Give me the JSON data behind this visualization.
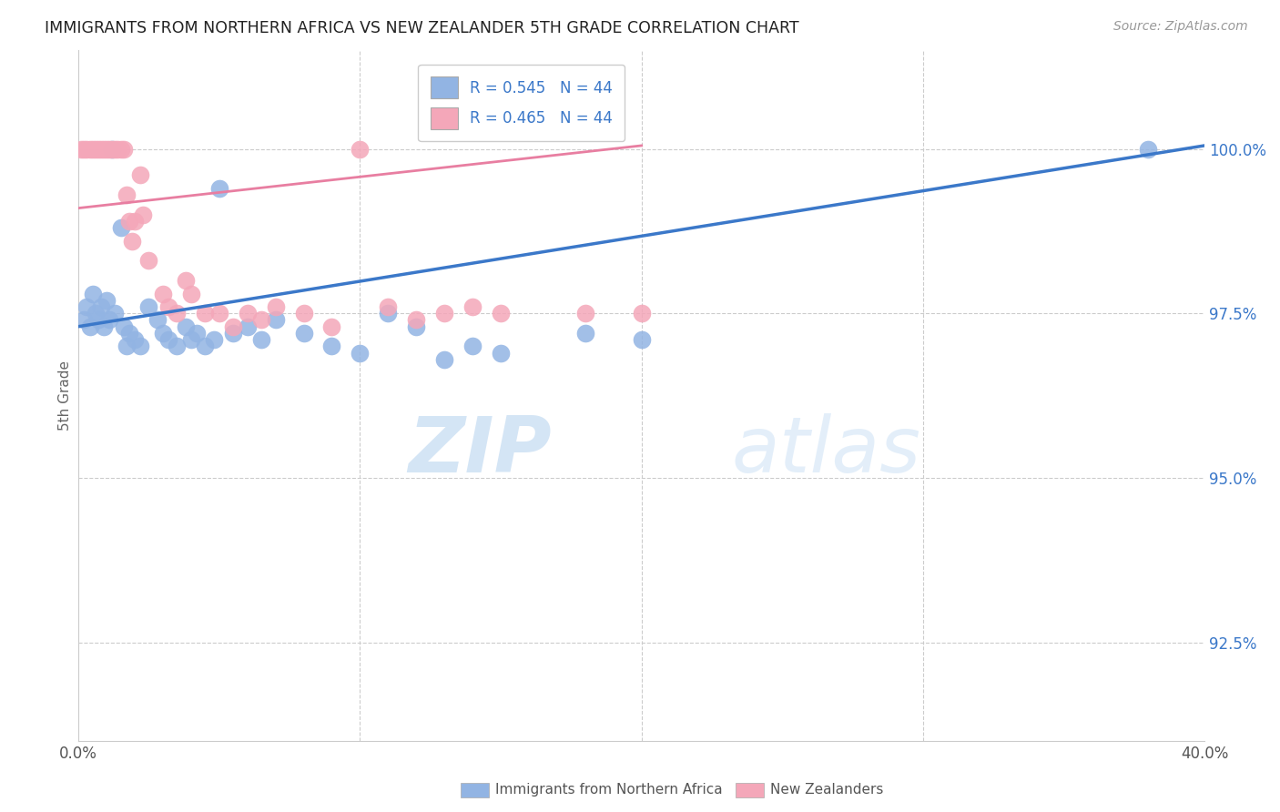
{
  "title": "IMMIGRANTS FROM NORTHERN AFRICA VS NEW ZEALANDER 5TH GRADE CORRELATION CHART",
  "source": "Source: ZipAtlas.com",
  "ylabel": "5th Grade",
  "y_ticks": [
    92.5,
    95.0,
    97.5,
    100.0
  ],
  "y_tick_labels": [
    "92.5%",
    "95.0%",
    "97.5%",
    "100.0%"
  ],
  "xlim": [
    0.0,
    40.0
  ],
  "ylim": [
    91.0,
    101.5
  ],
  "legend_r_blue": "R = 0.545",
  "legend_n_blue": "N = 44",
  "legend_r_pink": "R = 0.465",
  "legend_n_pink": "N = 44",
  "legend_label_blue": "Immigrants from Northern Africa",
  "legend_label_pink": "New Zealanders",
  "blue_color": "#92b4e3",
  "pink_color": "#f4a7b9",
  "trend_blue_color": "#3b78c9",
  "trend_pink_color": "#e87ea1",
  "watermark_zip": "ZIP",
  "watermark_atlas": "atlas",
  "blue_points": [
    [
      0.2,
      97.4
    ],
    [
      0.3,
      97.6
    ],
    [
      0.4,
      97.3
    ],
    [
      0.5,
      97.8
    ],
    [
      0.6,
      97.5
    ],
    [
      0.7,
      97.4
    ],
    [
      0.8,
      97.6
    ],
    [
      0.9,
      97.3
    ],
    [
      1.0,
      97.7
    ],
    [
      1.1,
      97.4
    ],
    [
      1.2,
      100.0
    ],
    [
      1.3,
      97.5
    ],
    [
      1.5,
      98.8
    ],
    [
      1.6,
      97.3
    ],
    [
      1.7,
      97.0
    ],
    [
      1.8,
      97.2
    ],
    [
      2.0,
      97.1
    ],
    [
      2.2,
      97.0
    ],
    [
      2.5,
      97.6
    ],
    [
      2.8,
      97.4
    ],
    [
      3.0,
      97.2
    ],
    [
      3.2,
      97.1
    ],
    [
      3.5,
      97.0
    ],
    [
      3.8,
      97.3
    ],
    [
      4.0,
      97.1
    ],
    [
      4.2,
      97.2
    ],
    [
      4.5,
      97.0
    ],
    [
      4.8,
      97.1
    ],
    [
      5.0,
      99.4
    ],
    [
      5.5,
      97.2
    ],
    [
      6.0,
      97.3
    ],
    [
      6.5,
      97.1
    ],
    [
      7.0,
      97.4
    ],
    [
      8.0,
      97.2
    ],
    [
      9.0,
      97.0
    ],
    [
      10.0,
      96.9
    ],
    [
      11.0,
      97.5
    ],
    [
      12.0,
      97.3
    ],
    [
      13.0,
      96.8
    ],
    [
      14.0,
      97.0
    ],
    [
      15.0,
      96.9
    ],
    [
      18.0,
      97.2
    ],
    [
      20.0,
      97.1
    ],
    [
      38.0,
      100.0
    ]
  ],
  "pink_points": [
    [
      0.1,
      100.0
    ],
    [
      0.2,
      100.0
    ],
    [
      0.3,
      100.0
    ],
    [
      0.4,
      100.0
    ],
    [
      0.5,
      100.0
    ],
    [
      0.6,
      100.0
    ],
    [
      0.7,
      100.0
    ],
    [
      0.8,
      100.0
    ],
    [
      0.9,
      100.0
    ],
    [
      1.0,
      100.0
    ],
    [
      1.1,
      100.0
    ],
    [
      1.2,
      100.0
    ],
    [
      1.3,
      100.0
    ],
    [
      1.4,
      100.0
    ],
    [
      1.5,
      100.0
    ],
    [
      1.6,
      100.0
    ],
    [
      1.7,
      99.3
    ],
    [
      1.8,
      98.9
    ],
    [
      1.9,
      98.6
    ],
    [
      2.0,
      98.9
    ],
    [
      2.2,
      99.6
    ],
    [
      2.3,
      99.0
    ],
    [
      2.5,
      98.3
    ],
    [
      3.0,
      97.8
    ],
    [
      3.2,
      97.6
    ],
    [
      3.5,
      97.5
    ],
    [
      3.8,
      98.0
    ],
    [
      4.0,
      97.8
    ],
    [
      4.5,
      97.5
    ],
    [
      5.0,
      97.5
    ],
    [
      5.5,
      97.3
    ],
    [
      6.0,
      97.5
    ],
    [
      6.5,
      97.4
    ],
    [
      7.0,
      97.6
    ],
    [
      8.0,
      97.5
    ],
    [
      9.0,
      97.3
    ],
    [
      10.0,
      100.0
    ],
    [
      11.0,
      97.6
    ],
    [
      12.0,
      97.4
    ],
    [
      13.0,
      97.5
    ],
    [
      14.0,
      97.6
    ],
    [
      15.0,
      97.5
    ],
    [
      18.0,
      97.5
    ],
    [
      20.0,
      97.5
    ]
  ],
  "blue_trend_x": [
    0.0,
    40.0
  ],
  "blue_trend_y": [
    97.3,
    100.05
  ],
  "pink_trend_x": [
    0.0,
    20.0
  ],
  "pink_trend_y": [
    99.1,
    100.05
  ]
}
